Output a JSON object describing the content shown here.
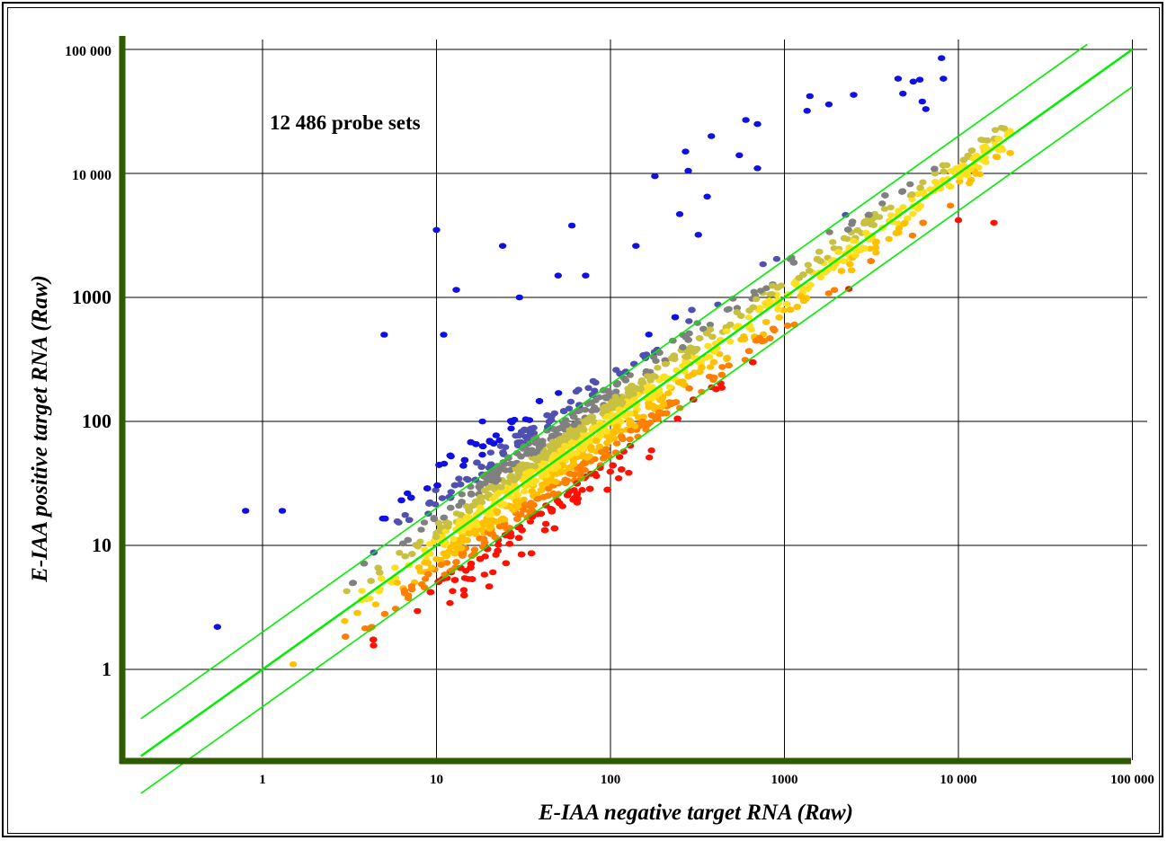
{
  "chart_data": {
    "type": "scatter",
    "title": "",
    "xlabel": "E-IAA negative target RNA (Raw)",
    "ylabel": "E-IAA positive target RNA (Raw)",
    "x_scale": "log",
    "y_scale": "log",
    "xlim": [
      0.2,
      100000
    ],
    "ylim": [
      0.15,
      100000
    ],
    "x_ticks": [
      1,
      10,
      100,
      1000,
      10000,
      100000
    ],
    "x_tick_labels": [
      "1",
      "10",
      "100",
      "1000",
      "10 000",
      "100 000"
    ],
    "y_ticks": [
      1,
      10,
      100,
      1000,
      10000,
      100000
    ],
    "y_tick_labels": [
      "1",
      "10",
      "100",
      "1000",
      "10 000",
      "100 000"
    ],
    "grid": true,
    "annotation": "12 486 probe sets",
    "probe_set_count": 12486,
    "reference_lines": [
      {
        "name": "",
        "ratio": 1,
        "color": "#00ee00"
      },
      {
        "name": "",
        "ratio": 2,
        "color": "#00ee00"
      },
      {
        "name": "",
        "ratio": 0.5,
        "color": "#00ee00"
      }
    ],
    "color_scale": [
      "#1010e0",
      "#5050b0",
      "#808080",
      "#c8c040",
      "#ffe020",
      "#ffc000",
      "#ff8000",
      "#ff1000"
    ],
    "highlighted_points": [
      {
        "x": 0.55,
        "y": 2.2
      },
      {
        "x": 0.8,
        "y": 19
      },
      {
        "x": 1.3,
        "y": 19
      },
      {
        "x": 1.5,
        "y": 1.1
      },
      {
        "x": 10,
        "y": 3500
      },
      {
        "x": 24,
        "y": 2600
      },
      {
        "x": 13,
        "y": 1150
      },
      {
        "x": 30,
        "y": 1000
      },
      {
        "x": 180,
        "y": 9500
      },
      {
        "x": 270,
        "y": 15000
      },
      {
        "x": 380,
        "y": 20000
      },
      {
        "x": 600,
        "y": 27000
      },
      {
        "x": 700,
        "y": 25000
      },
      {
        "x": 550,
        "y": 14000
      },
      {
        "x": 1400,
        "y": 42000
      },
      {
        "x": 1350,
        "y": 32000
      },
      {
        "x": 1800,
        "y": 36000
      },
      {
        "x": 2500,
        "y": 43000
      },
      {
        "x": 4500,
        "y": 58000
      },
      {
        "x": 5500,
        "y": 55000
      },
      {
        "x": 6000,
        "y": 57000
      },
      {
        "x": 8000,
        "y": 85000
      },
      {
        "x": 8200,
        "y": 58000
      },
      {
        "x": 4800,
        "y": 44000
      },
      {
        "x": 6200,
        "y": 38000
      },
      {
        "x": 6500,
        "y": 33000
      },
      {
        "x": 280,
        "y": 10500
      },
      {
        "x": 360,
        "y": 6500
      },
      {
        "x": 250,
        "y": 4700
      },
      {
        "x": 320,
        "y": 3200
      },
      {
        "x": 60,
        "y": 3800
      },
      {
        "x": 72,
        "y": 1500
      },
      {
        "x": 140,
        "y": 2600
      },
      {
        "x": 50,
        "y": 1500
      },
      {
        "x": 11,
        "y": 500
      },
      {
        "x": 5,
        "y": 500
      },
      {
        "x": 16000,
        "y": 4000
      },
      {
        "x": 10000,
        "y": 4200
      },
      {
        "x": 9000,
        "y": 5500
      },
      {
        "x": 700,
        "y": 11000
      }
    ],
    "bulk_cloud_note": "dense cloud of points along the ratio-1 diagonal"
  }
}
